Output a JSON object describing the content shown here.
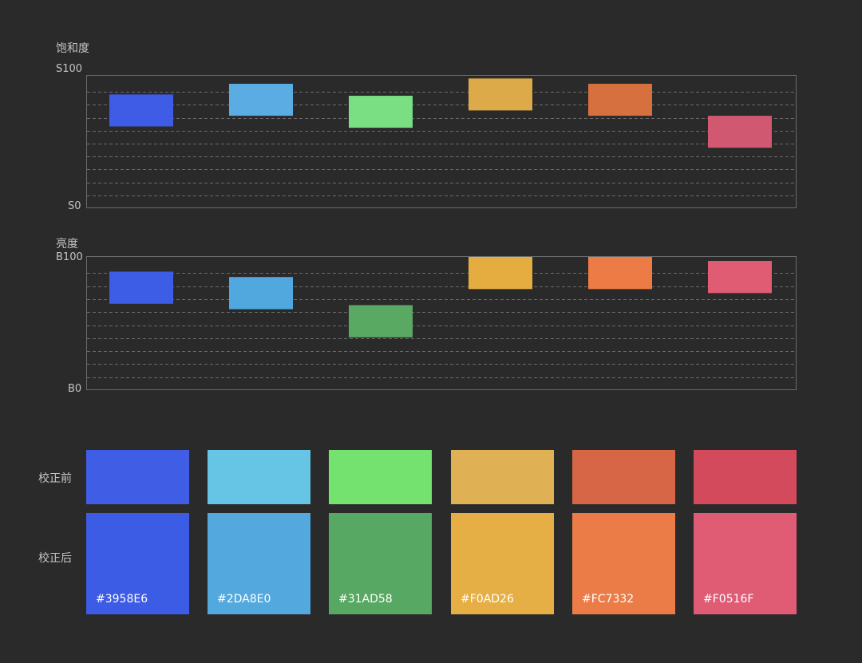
{
  "chart_data": [
    {
      "type": "bar",
      "title": "饱和度",
      "ylabel_max": "S100",
      "ylabel_min": "S0",
      "ylim": [
        0,
        100
      ],
      "categories": [
        "#3958E6",
        "#2DA8E0",
        "#31AD58",
        "#F0AD26",
        "#FC7332",
        "#F0516F"
      ],
      "series": [
        {
          "colors": [
            "#3e5ce6",
            "#5aace2",
            "#79df82",
            "#dcaa48",
            "#d7703f",
            "#d05870"
          ],
          "ranges": [
            [
              62,
              86
            ],
            [
              70,
              94
            ],
            [
              61,
              85
            ],
            [
              74,
              98
            ],
            [
              70,
              94
            ],
            [
              46,
              70
            ]
          ]
        }
      ]
    },
    {
      "type": "bar",
      "title": "亮度",
      "ylabel_max": "B100",
      "ylabel_min": "B0",
      "ylim": [
        0,
        100
      ],
      "categories": [
        "#3958E6",
        "#2DA8E0",
        "#31AD58",
        "#F0AD26",
        "#FC7332",
        "#F0516F"
      ],
      "series": [
        {
          "colors": [
            "#3d5de6",
            "#50a8de",
            "#5aa962",
            "#e5ad40",
            "#ec7b45",
            "#e05c73"
          ],
          "ranges": [
            [
              65,
              89
            ],
            [
              61,
              85
            ],
            [
              40,
              64
            ],
            [
              76,
              100
            ],
            [
              76,
              100
            ],
            [
              73,
              97
            ]
          ]
        }
      ]
    }
  ],
  "swatches": {
    "before_label": "校正前",
    "after_label": "校正后",
    "before": [
      "#405de6",
      "#66c4e5",
      "#74e26e",
      "#e0b055",
      "#d66645",
      "#d34a5c"
    ],
    "after": [
      {
        "hex": "#3958E6",
        "color": "#3d5ce6"
      },
      {
        "hex": "#2DA8E0",
        "color": "#53a8dd"
      },
      {
        "hex": "#31AD58",
        "color": "#57a862"
      },
      {
        "hex": "#F0AD26",
        "color": "#e5af45"
      },
      {
        "hex": "#FC7332",
        "color": "#eb7c47"
      },
      {
        "hex": "#F0516F",
        "color": "#df5c74"
      }
    ]
  }
}
